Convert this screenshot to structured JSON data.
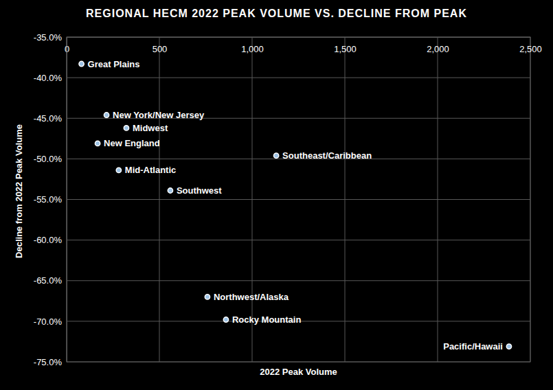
{
  "chart_data": {
    "type": "scatter",
    "title": "REGIONAL HECM 2022 PEAK VOLUME VS. DECLINE FROM PEAK",
    "x_label": "2022 Peak Volume",
    "y_label": "Decline from 2022 Peak Volume",
    "point_labels": [
      "Great Plains",
      "New York/New Jersey",
      "Midwest",
      "New England",
      "Mid-Atlantic",
      "Southwest",
      "Southeast/Caribbean",
      "Northwest/Alaska",
      "Rocky Mountain",
      "Pacific/Hawaii"
    ],
    "x": [
      80,
      215,
      322,
      167,
      281,
      559,
      1130,
      759,
      859,
      2385
    ],
    "values": [
      -38.3,
      -44.6,
      -46.2,
      -48.1,
      -51.4,
      -53.9,
      -49.6,
      -67.0,
      -69.8,
      -73.1
    ],
    "color": "#9dc3e6",
    "marker": "circle",
    "grid": true,
    "xlim": [
      0,
      2500
    ],
    "xticks": [
      0,
      500,
      {
        "value": 1000,
        "label": "1,000"
      },
      {
        "value": 1500,
        "label": "1,500"
      },
      {
        "value": 2000,
        "label": "2,000"
      },
      {
        "value": 2500,
        "label": "2,500"
      }
    ],
    "ylim": [
      -75,
      -35
    ],
    "yticks": [
      {
        "value": -35,
        "label": "-35.0%"
      },
      {
        "value": -40,
        "label": "-40.0%"
      },
      {
        "value": -45,
        "label": "-45.0%"
      },
      {
        "value": -50,
        "label": "-50.0%"
      },
      {
        "value": -55,
        "label": "-55.0%"
      },
      {
        "value": -60,
        "label": "-60.0%"
      },
      {
        "value": -65,
        "label": "-65.0%"
      },
      {
        "value": -70,
        "label": "-70.0%"
      },
      {
        "value": -75,
        "label": "-75.0%"
      }
    ]
  }
}
